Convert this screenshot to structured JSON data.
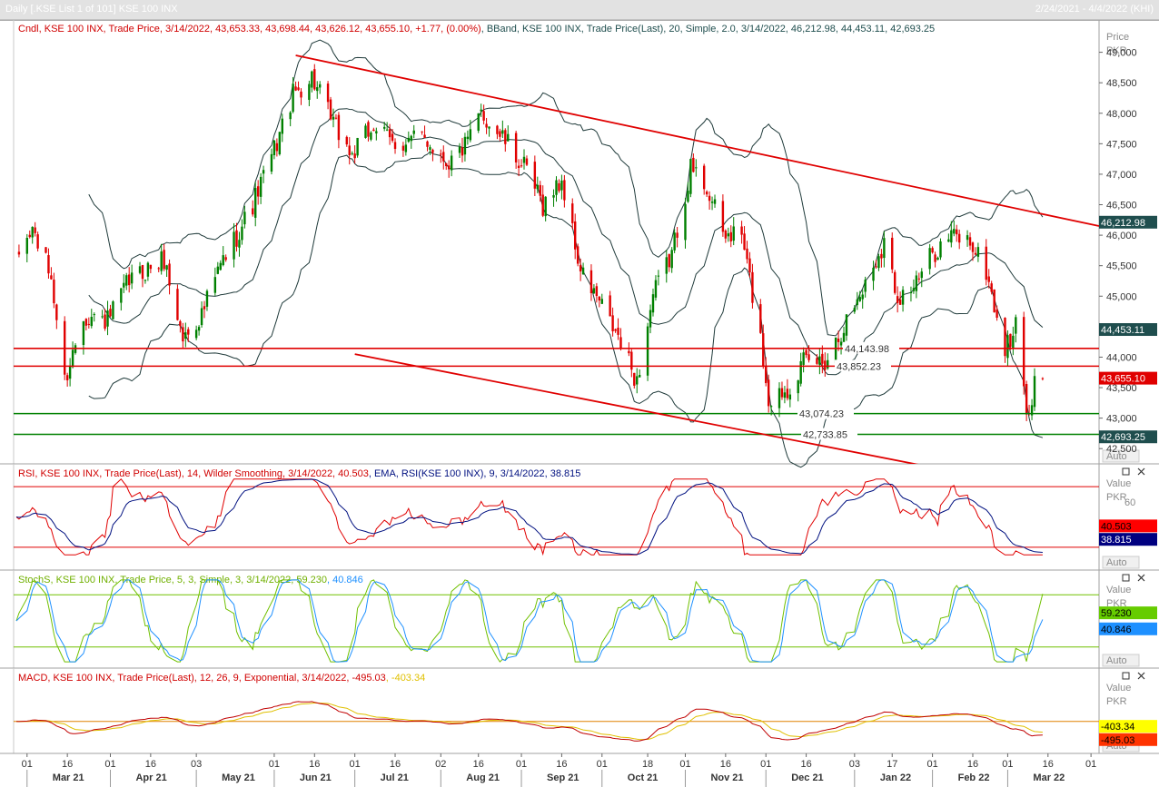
{
  "window": {
    "title": "Daily [.KSE List 1 of 101] KSE 100 INX",
    "date_range": "2/24/2021 - 4/4/2022 (KHI)"
  },
  "chart_data": [
    {
      "type": "candlestick",
      "id": "price",
      "legend_text": "Cndl, KSE 100 INX, Trade Price, 3/14/2022, 43,653.33, 43,698.44, 43,626.12, 43,655.10, +1.77, (0.00%)",
      "legend_text_2": ", BBand, KSE 100 INX, Trade Price(Last), 20, Simple, 2.0, 3/14/2022, 46,212.98, 44,453.11, 42,693.25",
      "axis_title": "Price",
      "axis_unit": "PKR",
      "auto_label": "Auto",
      "ylim": [
        42250,
        49500
      ],
      "yticks": [
        {
          "v": 49000,
          "l": "49,000"
        },
        {
          "v": 48500,
          "l": "48,500"
        },
        {
          "v": 48000,
          "l": "48,000"
        },
        {
          "v": 47500,
          "l": "47,500"
        },
        {
          "v": 47000,
          "l": "47,000"
        },
        {
          "v": 46500,
          "l": "46,500"
        },
        {
          "v": 46000,
          "l": "46,000"
        },
        {
          "v": 45500,
          "l": "45,500"
        },
        {
          "v": 45000,
          "l": "45,000"
        },
        {
          "v": 44500,
          "l": "44,500"
        },
        {
          "v": 44000,
          "l": "44,000"
        },
        {
          "v": 43500,
          "l": "43,500"
        },
        {
          "v": 43000,
          "l": "43,000"
        },
        {
          "v": 42500,
          "l": "42,500"
        }
      ],
      "value_badges": [
        {
          "label": "46,212.98",
          "value": 46212.98,
          "color": "#1f4e4e"
        },
        {
          "label": "44,453.11",
          "value": 44453.11,
          "color": "#1f4e4e"
        },
        {
          "label": "43,655.10",
          "value": 43655.1,
          "color": "#e00000"
        },
        {
          "label": "42,693.25",
          "value": 42693.25,
          "color": "#1f4e4e"
        }
      ],
      "horizontal_lines": [
        {
          "value": 44143.98,
          "label": "44,143.98",
          "color": "#e00000"
        },
        {
          "value": 43852.23,
          "label": "43,852.23",
          "color": "#e00000"
        },
        {
          "value": 43074.23,
          "label": "43,074.23",
          "color": "#008000"
        },
        {
          "value": 42733.85,
          "label": "42,733.85",
          "color": "#008000"
        }
      ],
      "trendlines": [
        {
          "from": [
            "2021-06-09",
            48950
          ],
          "to": [
            "2022-04-04",
            46150
          ],
          "color": "#e00000"
        },
        {
          "from": [
            "2021-07-01",
            44050
          ],
          "to": [
            "2022-01-31",
            42200
          ],
          "color": "#e00000"
        }
      ],
      "bollinger_period": 20,
      "bollinger_mult": 2.0,
      "monthly_closes": [
        {
          "date": "2021-02-25",
          "close": 45600
        },
        {
          "date": "2021-03-03",
          "close": 46100
        },
        {
          "date": "2021-03-10",
          "close": 45300
        },
        {
          "date": "2021-03-15",
          "close": 43600
        },
        {
          "date": "2021-03-22",
          "close": 44700
        },
        {
          "date": "2021-03-31",
          "close": 44590
        },
        {
          "date": "2021-04-08",
          "close": 45250
        },
        {
          "date": "2021-04-15",
          "close": 45450
        },
        {
          "date": "2021-04-21",
          "close": 45600
        },
        {
          "date": "2021-04-28",
          "close": 44300
        },
        {
          "date": "2021-05-05",
          "close": 44700
        },
        {
          "date": "2021-05-12",
          "close": 45500
        },
        {
          "date": "2021-05-24",
          "close": 46500
        },
        {
          "date": "2021-06-01",
          "close": 47400
        },
        {
          "date": "2021-06-08",
          "close": 48300
        },
        {
          "date": "2021-06-15",
          "close": 48600
        },
        {
          "date": "2021-06-22",
          "close": 47900
        },
        {
          "date": "2021-06-30",
          "close": 47300
        },
        {
          "date": "2021-07-08",
          "close": 47800
        },
        {
          "date": "2021-07-15",
          "close": 47500
        },
        {
          "date": "2021-07-27",
          "close": 47600
        },
        {
          "date": "2021-08-05",
          "close": 47200
        },
        {
          "date": "2021-08-12",
          "close": 47500
        },
        {
          "date": "2021-08-17",
          "close": 48000
        },
        {
          "date": "2021-08-25",
          "close": 47600
        },
        {
          "date": "2021-09-02",
          "close": 47100
        },
        {
          "date": "2021-09-09",
          "close": 46500
        },
        {
          "date": "2021-09-16",
          "close": 46900
        },
        {
          "date": "2021-09-23",
          "close": 45400
        },
        {
          "date": "2021-09-30",
          "close": 44900
        },
        {
          "date": "2021-10-07",
          "close": 44300
        },
        {
          "date": "2021-10-14",
          "close": 43600
        },
        {
          "date": "2021-10-20",
          "close": 45000
        },
        {
          "date": "2021-10-27",
          "close": 45700
        },
        {
          "date": "2021-11-03",
          "close": 47100
        },
        {
          "date": "2021-11-09",
          "close": 46800
        },
        {
          "date": "2021-11-15",
          "close": 46000
        },
        {
          "date": "2021-11-22",
          "close": 46000
        },
        {
          "date": "2021-11-29",
          "close": 44300
        },
        {
          "date": "2021-12-02",
          "close": 43300
        },
        {
          "date": "2021-12-09",
          "close": 43500
        },
        {
          "date": "2021-12-15",
          "close": 43900
        },
        {
          "date": "2021-12-23",
          "close": 43950
        },
        {
          "date": "2021-12-31",
          "close": 44600
        },
        {
          "date": "2022-01-07",
          "close": 45200
        },
        {
          "date": "2022-01-14",
          "close": 45900
        },
        {
          "date": "2022-01-19",
          "close": 45000
        },
        {
          "date": "2022-01-26",
          "close": 45200
        },
        {
          "date": "2022-02-01",
          "close": 45700
        },
        {
          "date": "2022-02-08",
          "close": 46000
        },
        {
          "date": "2022-02-15",
          "close": 45900
        },
        {
          "date": "2022-02-21",
          "close": 45400
        },
        {
          "date": "2022-02-28",
          "close": 44100
        },
        {
          "date": "2022-03-04",
          "close": 44500
        },
        {
          "date": "2022-03-09",
          "close": 42900
        },
        {
          "date": "2022-03-11",
          "close": 43600
        },
        {
          "date": "2022-03-14",
          "close": 43655.1
        }
      ]
    },
    {
      "type": "line",
      "id": "rsi",
      "legend_text": "RSI, KSE 100 INX, Trade Price(Last),  14, Wilder Smoothing, 3/14/2022, 40.503",
      "legend_text_2": ", EMA, RSI(KSE 100 INX),  9, 3/14/2022, 38.815",
      "axis_title": "Value",
      "axis_unit": "PKR",
      "auto_label": "Auto",
      "ylim": [
        15,
        85
      ],
      "yticks": [
        {
          "v": 60,
          "l": "60"
        }
      ],
      "levels": [
        70,
        30
      ],
      "series": [
        {
          "name": "RSI",
          "last": 40.503,
          "label": "40.503",
          "color": "#e00000"
        },
        {
          "name": "EMA",
          "last": 38.815,
          "label": "38.815",
          "color": "#001080"
        }
      ]
    },
    {
      "type": "line",
      "id": "stoch",
      "legend_text": "StochS, KSE 100 INX, Trade Price,  5, 3, Simple, 3, 3/14/2022, 59.230",
      "legend_text_2": ", 40.846",
      "axis_title": "Value",
      "axis_unit": "PKR",
      "auto_label": "Auto",
      "ylim": [
        0,
        100
      ],
      "levels": [
        80,
        20
      ],
      "series": [
        {
          "name": "%K",
          "last": 59.23,
          "label": "59.230",
          "color": "#70c000"
        },
        {
          "name": "%D",
          "last": 40.846,
          "label": "40.846",
          "color": "#1e90ff"
        }
      ]
    },
    {
      "type": "line",
      "id": "macd",
      "legend_text": "MACD, KSE 100 INX, Trade Price(Last),  12, 26, 9, Exponential, 3/14/2022, -495.03",
      "legend_text_2": ", -403.34",
      "axis_title": "Value",
      "axis_unit": "PKR",
      "auto_label": "Auto",
      "levels": [
        0
      ],
      "series": [
        {
          "name": "MACD",
          "last": -495.03,
          "label": "-495.03",
          "color": "#c00000"
        },
        {
          "name": "Signal",
          "last": -403.34,
          "label": "-403.34",
          "color": "#e0c000"
        }
      ]
    }
  ],
  "x_axis": {
    "start": "2021-02-24",
    "end": "2022-04-04",
    "day_ticks": [
      {
        "d": "2021-03-01",
        "l": "01"
      },
      {
        "d": "2021-03-16",
        "l": "16"
      },
      {
        "d": "2021-04-01",
        "l": "01"
      },
      {
        "d": "2021-04-16",
        "l": "16"
      },
      {
        "d": "2021-05-03",
        "l": "03"
      },
      {
        "d": "2021-06-01",
        "l": "01"
      },
      {
        "d": "2021-06-16",
        "l": "16"
      },
      {
        "d": "2021-07-01",
        "l": "01"
      },
      {
        "d": "2021-07-16",
        "l": "16"
      },
      {
        "d": "2021-08-02",
        "l": "02"
      },
      {
        "d": "2021-08-16",
        "l": "16"
      },
      {
        "d": "2021-09-01",
        "l": "01"
      },
      {
        "d": "2021-09-16",
        "l": "16"
      },
      {
        "d": "2021-10-01",
        "l": "01"
      },
      {
        "d": "2021-10-18",
        "l": "18"
      },
      {
        "d": "2021-11-01",
        "l": "01"
      },
      {
        "d": "2021-11-16",
        "l": "16"
      },
      {
        "d": "2021-12-01",
        "l": "01"
      },
      {
        "d": "2021-12-16",
        "l": "16"
      },
      {
        "d": "2022-01-03",
        "l": "03"
      },
      {
        "d": "2022-01-17",
        "l": "17"
      },
      {
        "d": "2022-02-01",
        "l": "01"
      },
      {
        "d": "2022-02-16",
        "l": "16"
      },
      {
        "d": "2022-03-01",
        "l": "01"
      },
      {
        "d": "2022-03-16",
        "l": "16"
      },
      {
        "d": "2022-04-01",
        "l": "01"
      }
    ],
    "month_labels": [
      {
        "d": "2021-03-01",
        "l": "Mar 21"
      },
      {
        "d": "2021-04-01",
        "l": "Apr 21"
      },
      {
        "d": "2021-05-03",
        "l": "May 21"
      },
      {
        "d": "2021-06-01",
        "l": "Jun 21"
      },
      {
        "d": "2021-07-01",
        "l": "Jul 21"
      },
      {
        "d": "2021-08-02",
        "l": "Aug 21"
      },
      {
        "d": "2021-09-01",
        "l": "Sep 21"
      },
      {
        "d": "2021-10-01",
        "l": "Oct 21"
      },
      {
        "d": "2021-11-01",
        "l": "Nov 21"
      },
      {
        "d": "2021-12-01",
        "l": "Dec 21"
      },
      {
        "d": "2022-01-03",
        "l": "Jan 22"
      },
      {
        "d": "2022-02-01",
        "l": "Feb 22"
      },
      {
        "d": "2022-03-01",
        "l": "Mar 22"
      }
    ]
  },
  "colors": {
    "up": "#008000",
    "down": "#e00000",
    "band": "#1f3a3a",
    "grid": "#dcdcdc",
    "axis_text": "#333333",
    "axis_muted": "#8a8a8a"
  }
}
